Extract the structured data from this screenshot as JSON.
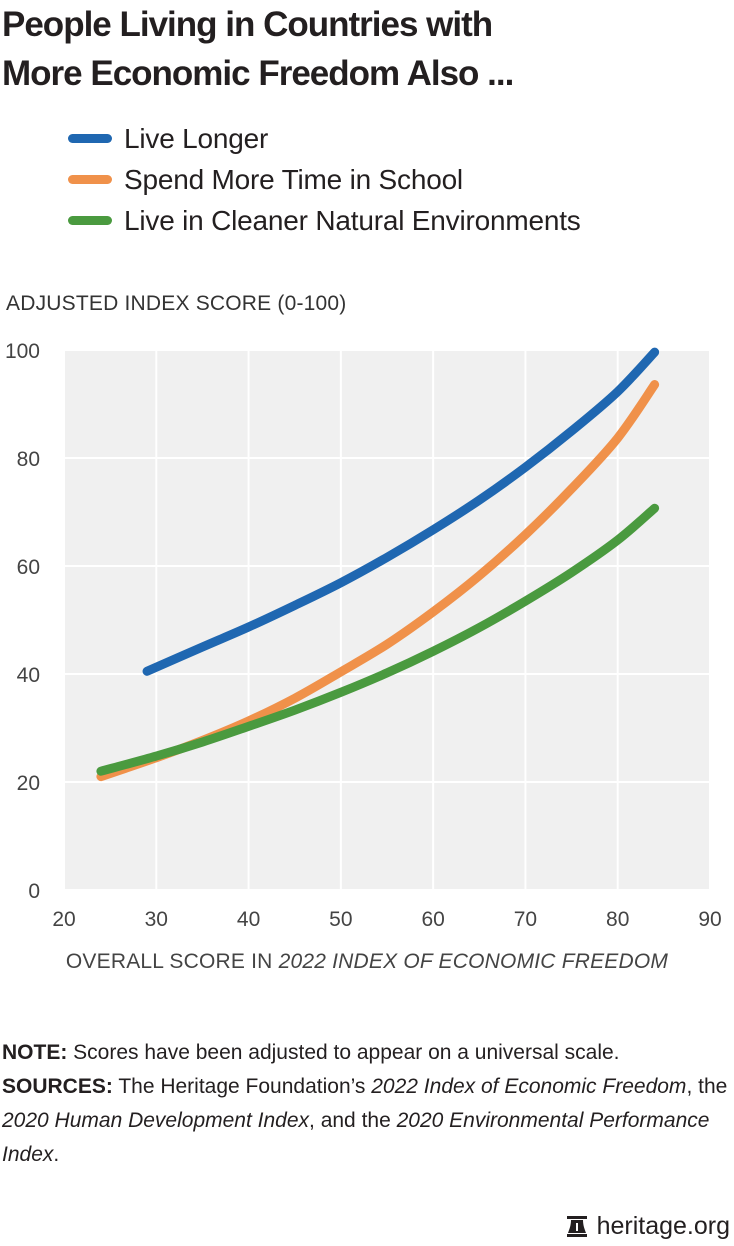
{
  "header": {
    "title_line1": "People Living in Countries with",
    "title_line2": "More Economic Freedom Also ..."
  },
  "colors": {
    "live_longer": "#1f67b1",
    "school": "#f0914a",
    "environment": "#4a9a3f",
    "grid": "#ffffff",
    "plot_bg": "#f0f0f0"
  },
  "chart_data": {
    "type": "line",
    "title": "People Living in Countries with More Economic Freedom Also ...",
    "ylabel": "ADJUSTED INDEX SCORE (0-100)",
    "xlabel_prefix": "OVERALL SCORE IN ",
    "xlabel_italic": "2022 INDEX OF ECONOMIC FREEDOM",
    "xlim": [
      20,
      90
    ],
    "ylim": [
      0,
      100
    ],
    "xticks": [
      "20",
      "30",
      "40",
      "50",
      "60",
      "70",
      "80",
      "90"
    ],
    "yticks": [
      "0",
      "20",
      "40",
      "60",
      "80",
      "100"
    ],
    "grid": true,
    "legend_position": "top-left",
    "series": [
      {
        "name": "Live Longer",
        "color_key": "live_longer",
        "x": [
          29,
          35,
          40,
          45,
          50,
          55,
          60,
          65,
          70,
          75,
          80,
          84
        ],
        "y": [
          40.5,
          45,
          48.7,
          52.7,
          56.9,
          61.6,
          66.7,
          72.2,
          78.3,
          85,
          92.3,
          99.6
        ]
      },
      {
        "name": "Spend More Time in School",
        "color_key": "school",
        "x": [
          24,
          30,
          35,
          40,
          45,
          50,
          55,
          60,
          65,
          70,
          75,
          80,
          84
        ],
        "y": [
          21,
          24.5,
          27.7,
          31.3,
          35.5,
          40.4,
          45.5,
          51.5,
          58.2,
          65.8,
          74.3,
          83.7,
          93.6
        ]
      },
      {
        "name": "Live in Cleaner Natural Environments",
        "color_key": "environment",
        "x": [
          24,
          30,
          35,
          40,
          45,
          50,
          55,
          60,
          65,
          70,
          75,
          80,
          84
        ],
        "y": [
          22,
          24.8,
          27.4,
          30.3,
          33.3,
          36.6,
          40.2,
          44.2,
          48.6,
          53.5,
          58.8,
          64.8,
          70.7
        ]
      }
    ]
  },
  "notes": {
    "note_label": "NOTE:",
    "note_text": " Scores have been adjusted to appear on a universal scale.",
    "sources_label": "SOURCES:",
    "sources_t1": " The Heritage Foundation’s ",
    "sources_i1": "2022 Index of Economic Freedom",
    "sources_t2": ", the ",
    "sources_i2": "2020 Human Development Index",
    "sources_t3": ", and the ",
    "sources_i3": "2020 Environmental Performance Index",
    "sources_t4": "."
  },
  "footer": {
    "logo_icon": "bell-icon",
    "site": "heritage.org"
  }
}
